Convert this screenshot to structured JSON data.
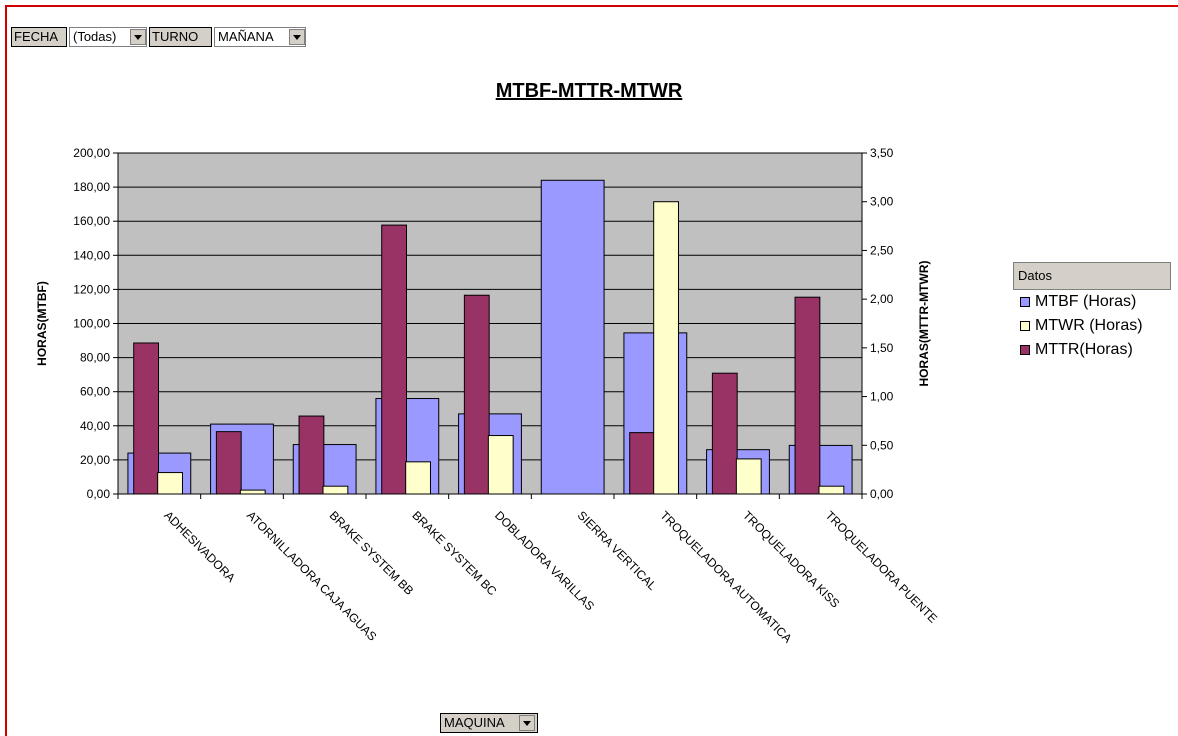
{
  "filters": {
    "fecha_label": "FECHA",
    "fecha_value": "(Todas)",
    "turno_label": "TURNO",
    "turno_value": "MAÑANA",
    "maquina_label": "MAQUINA"
  },
  "legend": {
    "title": "Datos"
  },
  "colors": {
    "mtbf": "#9999ff",
    "mtwr": "#ffffcc",
    "mttr": "#993366",
    "plot_bg": "#c0c0c0",
    "frame": "#d00000"
  },
  "chart_data": {
    "type": "bar",
    "title": "MTBF-MTTR-MTWR",
    "xlabel": "",
    "ylabel": "HORAS(MTBF)",
    "y2label": "HORAS(MTTR-MTWR)",
    "ylim": [
      0,
      200
    ],
    "y2lim": [
      0,
      3.5
    ],
    "yticks": [
      "0,00",
      "20,00",
      "40,00",
      "60,00",
      "80,00",
      "100,00",
      "120,00",
      "140,00",
      "160,00",
      "180,00",
      "200,00"
    ],
    "y2ticks": [
      "0,00",
      "0,50",
      "1,00",
      "1,50",
      "2,00",
      "2,50",
      "3,00",
      "3,50"
    ],
    "grid": true,
    "legend_position": "right",
    "categories": [
      "ADHESIVADORA",
      "ATORNILLADORA CAJA AGUAS",
      "BRAKE SYSTEM BB",
      "BRAKE SYSTEM BC",
      "DOBLADORA VARILLAS",
      "SIERRA VERTICAL",
      "TROQUELADORA AUTOMATICA",
      "TROQUELADORA KISS",
      "TROQUELADORA PUENTE"
    ],
    "series": [
      {
        "name": "MTBF (Horas)",
        "axis": "left",
        "values": [
          24,
          41,
          29,
          56,
          47,
          184,
          94.5,
          26,
          28.5
        ]
      },
      {
        "name": "MTWR (Horas)",
        "axis": "right",
        "values": [
          0.22,
          0.04,
          0.08,
          0.33,
          0.6,
          0,
          3.0,
          0.36,
          0.08
        ]
      },
      {
        "name": "MTTR(Horas)",
        "axis": "right",
        "values": [
          1.55,
          0.64,
          0.8,
          2.76,
          2.04,
          0,
          0.63,
          1.24,
          2.02
        ]
      }
    ]
  }
}
